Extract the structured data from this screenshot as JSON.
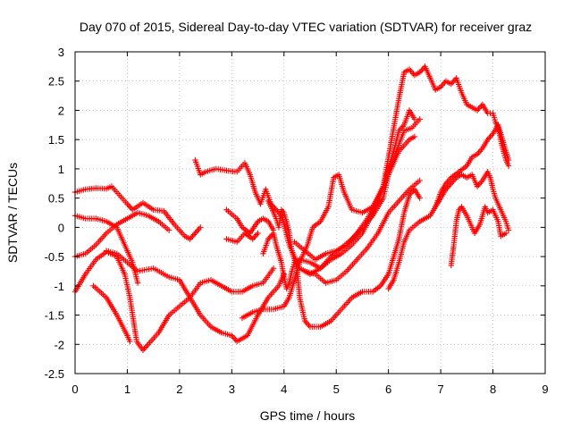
{
  "chart_data": {
    "type": "scatter",
    "title": "Day 070 of 2015, Sidereal Day-to-day VTEC variation (SDTVAR) for receiver graz",
    "xlabel": "GPS time / hours",
    "ylabel": "SDTVAR / TECUs",
    "xlim": [
      0,
      9
    ],
    "ylim": [
      -2.5,
      3
    ],
    "xticks": [
      "0",
      "1",
      "2",
      "3",
      "4",
      "5",
      "6",
      "7",
      "8",
      "9"
    ],
    "yticks": [
      "-2.5",
      "-2",
      "-1.5",
      "-1",
      "-0.5",
      "0",
      "0.5",
      "1",
      "1.5",
      "2",
      "2.5",
      "3"
    ],
    "grid": true,
    "marker": "+",
    "color": "#ff0000",
    "series": [
      {
        "name": "s1",
        "points": [
          [
            0,
            0.6
          ],
          [
            0.2,
            0.65
          ],
          [
            0.4,
            0.67
          ],
          [
            0.6,
            0.66
          ],
          [
            0.7,
            0.7
          ],
          [
            0.85,
            0.55
          ],
          [
            1.0,
            0.4
          ],
          [
            1.1,
            0.3
          ],
          [
            1.3,
            0.42
          ],
          [
            1.5,
            0.3
          ],
          [
            1.7,
            0.28
          ],
          [
            1.9,
            0.05
          ],
          [
            2.1,
            -0.15
          ],
          [
            2.2,
            -0.2
          ],
          [
            2.3,
            -0.1
          ],
          [
            2.4,
            0.0
          ]
        ]
      },
      {
        "name": "s2",
        "points": [
          [
            0,
            0.2
          ],
          [
            0.2,
            0.15
          ],
          [
            0.4,
            0.15
          ],
          [
            0.6,
            0.1
          ],
          [
            0.8,
            0.0
          ],
          [
            0.9,
            -0.2
          ],
          [
            1.0,
            -0.4
          ],
          [
            1.1,
            -0.6
          ],
          [
            1.2,
            -0.95
          ]
        ]
      },
      {
        "name": "s3",
        "points": [
          [
            0,
            -1.1
          ],
          [
            0.2,
            -0.8
          ],
          [
            0.4,
            -0.55
          ],
          [
            0.6,
            -0.42
          ],
          [
            0.8,
            -0.5
          ],
          [
            0.95,
            -0.8
          ],
          [
            1.05,
            -1.2
          ],
          [
            1.12,
            -1.6
          ],
          [
            1.18,
            -1.95
          ],
          [
            1.3,
            -2.1
          ],
          [
            1.4,
            -2.0
          ],
          [
            1.6,
            -1.8
          ],
          [
            1.8,
            -1.5
          ],
          [
            2.0,
            -1.35
          ],
          [
            2.2,
            -1.2
          ],
          [
            2.4,
            -0.95
          ],
          [
            2.6,
            -0.9
          ],
          [
            2.8,
            -1.0
          ],
          [
            3.0,
            -1.1
          ],
          [
            3.2,
            -1.1
          ],
          [
            3.4,
            -1.0
          ],
          [
            3.6,
            -0.95
          ],
          [
            3.8,
            -0.7
          ]
        ]
      },
      {
        "name": "s4",
        "points": [
          [
            0,
            -0.5
          ],
          [
            0.2,
            -0.45
          ],
          [
            0.4,
            -0.3
          ],
          [
            0.6,
            -0.1
          ],
          [
            0.8,
            0.05
          ],
          [
            1.0,
            0.15
          ],
          [
            1.2,
            0.25
          ],
          [
            1.4,
            0.2
          ],
          [
            1.6,
            0.1
          ],
          [
            1.8,
            -0.05
          ]
        ]
      },
      {
        "name": "s5",
        "points": [
          [
            0.35,
            -1.0
          ],
          [
            0.6,
            -1.2
          ],
          [
            0.8,
            -1.5
          ],
          [
            1.0,
            -1.85
          ],
          [
            1.05,
            -1.95
          ]
        ]
      },
      {
        "name": "s6",
        "points": [
          [
            0.6,
            -0.4
          ],
          [
            0.8,
            -0.45
          ],
          [
            1.0,
            -0.6
          ],
          [
            1.2,
            -0.75
          ],
          [
            1.5,
            -0.7
          ],
          [
            1.8,
            -0.85
          ],
          [
            2.0,
            -0.9
          ],
          [
            2.2,
            -1.2
          ],
          [
            2.4,
            -1.5
          ],
          [
            2.6,
            -1.7
          ],
          [
            2.8,
            -1.8
          ],
          [
            3.0,
            -1.85
          ],
          [
            3.1,
            -1.95
          ],
          [
            3.3,
            -1.85
          ],
          [
            3.5,
            -1.5
          ],
          [
            3.7,
            -1.2
          ],
          [
            3.9,
            -1.0
          ],
          [
            4.0,
            -0.8
          ]
        ]
      },
      {
        "name": "s7",
        "points": [
          [
            2.3,
            1.15
          ],
          [
            2.4,
            0.9
          ],
          [
            2.5,
            0.95
          ],
          [
            2.7,
            1.0
          ],
          [
            2.9,
            0.97
          ],
          [
            3.1,
            0.95
          ],
          [
            3.25,
            1.1
          ],
          [
            3.35,
            0.9
          ],
          [
            3.45,
            0.6
          ],
          [
            3.55,
            0.4
          ],
          [
            3.65,
            0.65
          ],
          [
            3.75,
            0.4
          ],
          [
            3.85,
            0.3
          ],
          [
            3.95,
            0.2
          ],
          [
            4.0,
            0.05
          ],
          [
            4.1,
            -0.3
          ],
          [
            4.2,
            -0.5
          ],
          [
            4.3,
            -0.7
          ],
          [
            4.5,
            -0.8
          ],
          [
            4.7,
            -0.7
          ],
          [
            4.9,
            -0.5
          ],
          [
            5.1,
            -0.35
          ],
          [
            5.3,
            -0.2
          ],
          [
            5.5,
            0.0
          ],
          [
            5.7,
            0.2
          ],
          [
            5.9,
            0.5
          ],
          [
            6.0,
            0.9
          ],
          [
            6.15,
            1.3
          ],
          [
            6.3,
            1.65
          ],
          [
            6.45,
            1.7
          ],
          [
            6.6,
            1.85
          ]
        ]
      },
      {
        "name": "s8",
        "points": [
          [
            2.9,
            0.3
          ],
          [
            3.1,
            0.15
          ],
          [
            3.2,
            0.0
          ],
          [
            3.35,
            -0.1
          ],
          [
            3.5,
            0.1
          ],
          [
            3.6,
            0.15
          ],
          [
            3.7,
            0.1
          ],
          [
            3.8,
            -0.05
          ]
        ]
      },
      {
        "name": "s9",
        "points": [
          [
            2.9,
            -0.2
          ],
          [
            3.1,
            -0.25
          ],
          [
            3.25,
            -0.1
          ],
          [
            3.4,
            -0.2
          ],
          [
            3.5,
            -0.1
          ]
        ]
      },
      {
        "name": "s10",
        "points": [
          [
            3.2,
            -1.55
          ],
          [
            3.4,
            -1.45
          ],
          [
            3.6,
            -1.4
          ],
          [
            3.8,
            -1.4
          ],
          [
            4.0,
            -1.35
          ],
          [
            4.1,
            -1.2
          ],
          [
            4.2,
            -0.9
          ],
          [
            4.3,
            -0.6
          ],
          [
            4.45,
            -0.3
          ],
          [
            4.55,
            0.0
          ],
          [
            4.7,
            0.1
          ],
          [
            4.85,
            0.35
          ],
          [
            4.95,
            0.85
          ],
          [
            5.05,
            0.9
          ],
          [
            5.15,
            0.6
          ],
          [
            5.3,
            0.3
          ],
          [
            5.5,
            0.25
          ],
          [
            5.7,
            0.35
          ],
          [
            5.9,
            0.7
          ],
          [
            6.0,
            1.0
          ],
          [
            6.1,
            1.3
          ],
          [
            6.2,
            1.65
          ],
          [
            6.3,
            1.75
          ],
          [
            6.4,
            2.0
          ],
          [
            6.5,
            1.85
          ]
        ]
      },
      {
        "name": "s11",
        "points": [
          [
            3.6,
            -0.45
          ],
          [
            3.7,
            -0.2
          ],
          [
            3.8,
            -0.1
          ],
          [
            3.85,
            -0.3
          ],
          [
            3.95,
            -0.6
          ],
          [
            4.0,
            -0.85
          ],
          [
            4.05,
            -1.05
          ],
          [
            4.1,
            -0.95
          ],
          [
            4.15,
            -0.75
          ],
          [
            4.2,
            -0.6
          ],
          [
            4.3,
            -0.55
          ],
          [
            4.5,
            -0.6
          ],
          [
            4.7,
            -0.7
          ],
          [
            4.9,
            -0.55
          ],
          [
            5.1,
            -0.45
          ],
          [
            5.3,
            -0.3
          ],
          [
            5.5,
            -0.1
          ],
          [
            5.7,
            0.25
          ],
          [
            5.9,
            0.7
          ],
          [
            6.0,
            1.2
          ],
          [
            6.1,
            1.7
          ],
          [
            6.2,
            2.2
          ],
          [
            6.3,
            2.65
          ],
          [
            6.4,
            2.7
          ],
          [
            6.5,
            2.6
          ],
          [
            6.6,
            2.65
          ],
          [
            6.7,
            2.75
          ],
          [
            6.8,
            2.55
          ],
          [
            6.9,
            2.35
          ],
          [
            7.0,
            2.4
          ],
          [
            7.1,
            2.5
          ],
          [
            7.2,
            2.45
          ],
          [
            7.3,
            2.55
          ],
          [
            7.4,
            2.3
          ],
          [
            7.5,
            2.1
          ],
          [
            7.6,
            2.05
          ],
          [
            7.7,
            2.0
          ],
          [
            7.8,
            2.1
          ],
          [
            7.9,
            1.95
          ],
          [
            8.0,
            1.95
          ],
          [
            8.05,
            1.8
          ],
          [
            8.1,
            1.7
          ],
          [
            8.15,
            1.5
          ],
          [
            8.2,
            1.3
          ],
          [
            8.25,
            1.15
          ],
          [
            8.3,
            1.05
          ]
        ]
      },
      {
        "name": "s12",
        "points": [
          [
            3.7,
            0.45
          ],
          [
            3.8,
            0.25
          ],
          [
            3.85,
            0.15
          ],
          [
            3.9,
            0.0
          ],
          [
            3.95,
            0.3
          ],
          [
            4.0,
            0.25
          ],
          [
            4.05,
            0.1
          ],
          [
            4.1,
            -0.1
          ],
          [
            4.15,
            -0.4
          ],
          [
            4.25,
            -0.7
          ],
          [
            4.3,
            -1.2
          ],
          [
            4.4,
            -1.6
          ],
          [
            4.5,
            -1.7
          ],
          [
            4.7,
            -1.7
          ],
          [
            4.9,
            -1.6
          ],
          [
            5.1,
            -1.4
          ],
          [
            5.3,
            -1.2
          ],
          [
            5.5,
            -1.1
          ],
          [
            5.7,
            -1.1
          ],
          [
            5.85,
            -1.0
          ],
          [
            6.0,
            -0.8
          ],
          [
            6.1,
            -0.5
          ],
          [
            6.2,
            -0.2
          ],
          [
            6.3,
            0.25
          ],
          [
            6.4,
            0.55
          ],
          [
            6.5,
            0.65
          ],
          [
            6.6,
            0.5
          ]
        ]
      },
      {
        "name": "s13",
        "points": [
          [
            4.4,
            -0.75
          ],
          [
            4.6,
            -0.8
          ],
          [
            4.8,
            -0.95
          ],
          [
            5.0,
            -0.9
          ],
          [
            5.2,
            -0.75
          ],
          [
            5.4,
            -0.55
          ],
          [
            5.6,
            -0.35
          ],
          [
            5.8,
            -0.1
          ],
          [
            6.0,
            0.25
          ],
          [
            6.2,
            0.45
          ],
          [
            6.4,
            0.65
          ],
          [
            6.6,
            0.8
          ]
        ]
      },
      {
        "name": "s14",
        "points": [
          [
            4.2,
            -0.25
          ],
          [
            4.4,
            -0.4
          ],
          [
            4.6,
            -0.55
          ],
          [
            4.8,
            -0.45
          ],
          [
            5.0,
            -0.4
          ],
          [
            5.2,
            -0.3
          ],
          [
            5.4,
            -0.1
          ],
          [
            5.6,
            0.15
          ],
          [
            5.8,
            0.5
          ],
          [
            6.0,
            0.9
          ],
          [
            6.2,
            1.3
          ],
          [
            6.4,
            1.5
          ],
          [
            6.5,
            1.55
          ]
        ]
      },
      {
        "name": "s15",
        "points": [
          [
            6.0,
            -1.05
          ],
          [
            6.1,
            -0.9
          ],
          [
            6.2,
            -0.6
          ],
          [
            6.3,
            -0.25
          ],
          [
            6.4,
            -0.05
          ],
          [
            6.6,
            0.1
          ],
          [
            6.8,
            0.2
          ],
          [
            6.9,
            0.35
          ],
          [
            7.0,
            0.6
          ],
          [
            7.1,
            0.75
          ],
          [
            7.2,
            0.85
          ],
          [
            7.35,
            0.95
          ],
          [
            7.5,
            1.05
          ],
          [
            7.6,
            1.2
          ],
          [
            7.7,
            1.25
          ],
          [
            7.8,
            1.35
          ],
          [
            7.9,
            1.5
          ],
          [
            8.0,
            1.6
          ],
          [
            8.1,
            1.75
          ],
          [
            8.2,
            1.45
          ],
          [
            8.3,
            1.15
          ]
        ]
      },
      {
        "name": "s16",
        "points": [
          [
            7.2,
            -0.65
          ],
          [
            7.25,
            -0.3
          ],
          [
            7.3,
            0.1
          ],
          [
            7.35,
            0.3
          ],
          [
            7.4,
            0.35
          ],
          [
            7.5,
            0.2
          ],
          [
            7.6,
            0.0
          ],
          [
            7.65,
            -0.1
          ],
          [
            7.75,
            0.05
          ],
          [
            7.85,
            0.35
          ],
          [
            7.9,
            0.25
          ],
          [
            8.0,
            0.3
          ],
          [
            8.1,
            0.1
          ],
          [
            8.15,
            -0.15
          ],
          [
            8.25,
            -0.1
          ]
        ]
      },
      {
        "name": "s17",
        "points": [
          [
            6.9,
            0.35
          ],
          [
            7.0,
            0.5
          ],
          [
            7.1,
            0.65
          ],
          [
            7.2,
            0.75
          ],
          [
            7.3,
            0.85
          ],
          [
            7.4,
            0.9
          ],
          [
            7.5,
            0.85
          ],
          [
            7.6,
            0.9
          ],
          [
            7.7,
            0.7
          ],
          [
            7.8,
            0.8
          ],
          [
            7.9,
            0.95
          ],
          [
            7.95,
            0.85
          ],
          [
            8.0,
            0.65
          ],
          [
            8.05,
            0.5
          ],
          [
            8.1,
            0.4
          ],
          [
            8.15,
            0.3
          ],
          [
            8.2,
            0.2
          ],
          [
            8.25,
            0.1
          ],
          [
            8.3,
            -0.05
          ]
        ]
      }
    ]
  }
}
